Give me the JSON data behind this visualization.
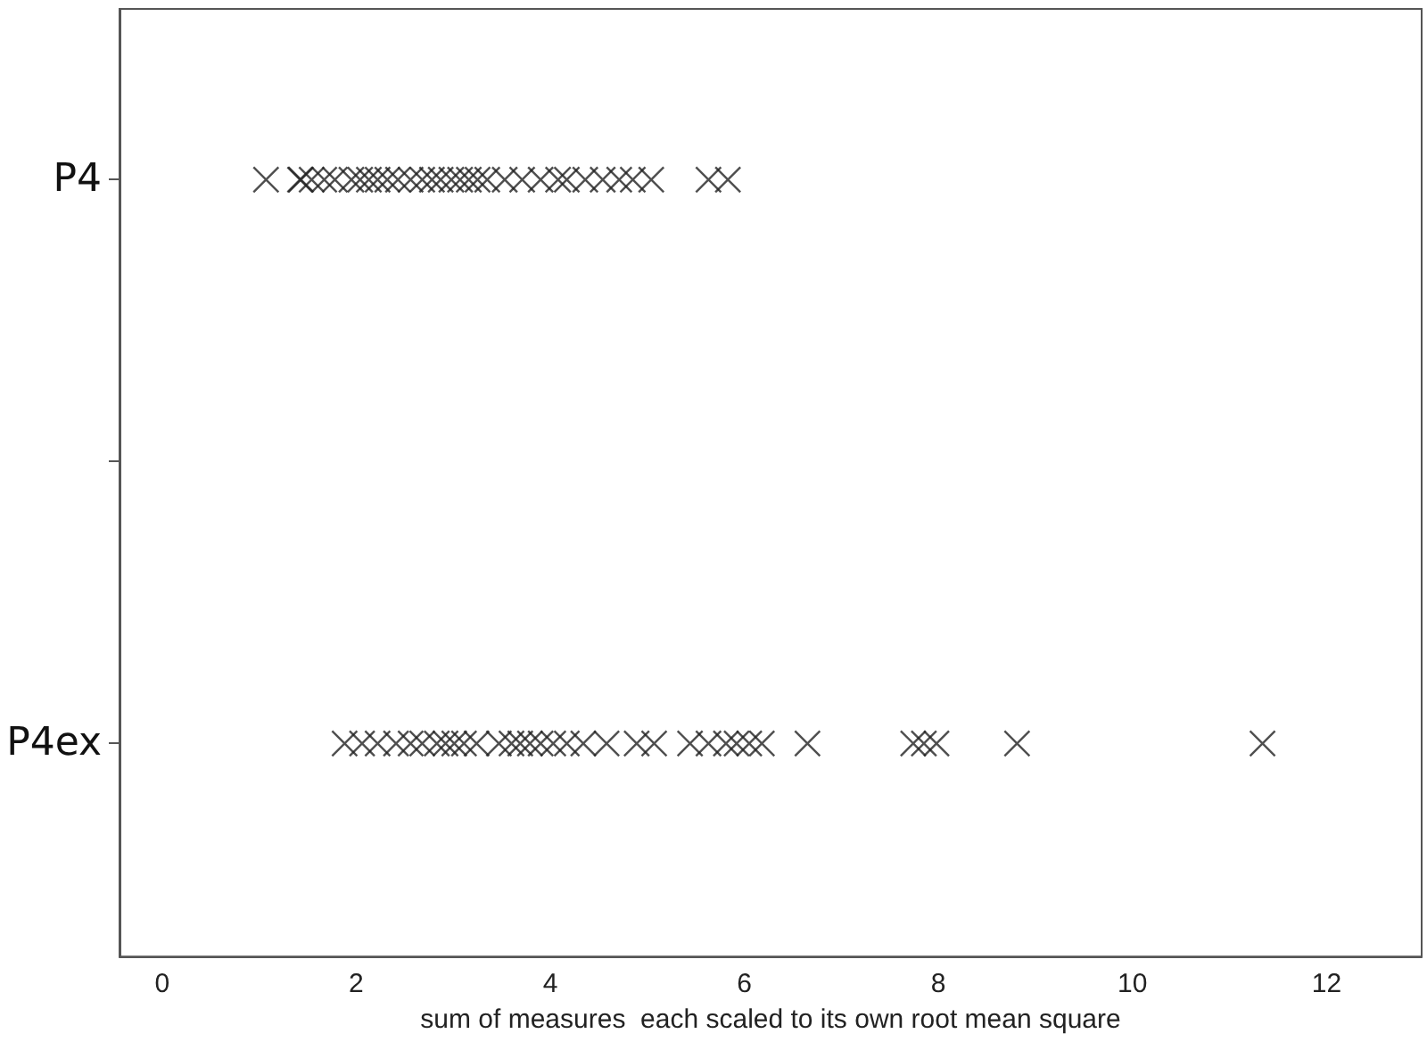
{
  "chart_data": {
    "type": "scatter",
    "orientation": "horizontal",
    "categories": [
      "P4",
      null,
      "P4ex"
    ],
    "xlabel": "sum of measures  each scaled to its own root mean square",
    "xlim": [
      -0.44,
      12.98
    ],
    "xticks": [
      0,
      2,
      4,
      6,
      8,
      10,
      12
    ],
    "marker": "cross",
    "series": [
      {
        "color": "#222222",
        "x": [
          "P4",
          "P4",
          "P4",
          "P4",
          "P4",
          "P4",
          "P4",
          "P4",
          "P4",
          "P4",
          "P4",
          "P4",
          "P4",
          "P4",
          "P4",
          "P4",
          "P4",
          "P4",
          "P4",
          "P4",
          "P4",
          "P4",
          "P4",
          "P4",
          "P4",
          "P4",
          "P4",
          "P4",
          "P4",
          "P4",
          "P4",
          "P4",
          "P4"
        ],
        "values": [
          1.07,
          1.42,
          1.43,
          1.54,
          1.67,
          1.78,
          1.95,
          2.04,
          2.13,
          2.22,
          2.32,
          2.43,
          2.56,
          2.68,
          2.78,
          2.87,
          2.98,
          3.07,
          3.16,
          3.25,
          3.35,
          3.53,
          3.71,
          3.9,
          4.08,
          4.17,
          4.36,
          4.54,
          4.71,
          4.85,
          5.04,
          5.63,
          5.83
        ]
      },
      {
        "color": "#222222",
        "x": [
          "P4ex",
          "P4ex",
          "P4ex",
          "P4ex",
          "P4ex",
          "P4ex",
          "P4ex",
          "P4ex",
          "P4ex",
          "P4ex",
          "P4ex",
          "P4ex",
          "P4ex",
          "P4ex",
          "P4ex",
          "P4ex",
          "P4ex",
          "P4ex",
          "P4ex",
          "P4ex",
          "P4ex",
          "P4ex",
          "P4ex",
          "P4ex",
          "P4ex",
          "P4ex",
          "P4ex",
          "P4ex",
          "P4ex",
          "P4ex",
          "P4ex",
          "P4ex",
          "P4ex",
          "P4ex"
        ],
        "values": [
          1.88,
          2.06,
          2.22,
          2.41,
          2.56,
          2.68,
          2.83,
          2.92,
          3.01,
          3.11,
          3.24,
          3.47,
          3.6,
          3.69,
          3.79,
          3.9,
          4.03,
          4.17,
          4.34,
          4.58,
          4.89,
          5.07,
          5.44,
          5.63,
          5.81,
          5.92,
          6.05,
          6.18,
          6.65,
          7.74,
          7.85,
          7.98,
          8.81,
          11.34
        ]
      }
    ]
  }
}
